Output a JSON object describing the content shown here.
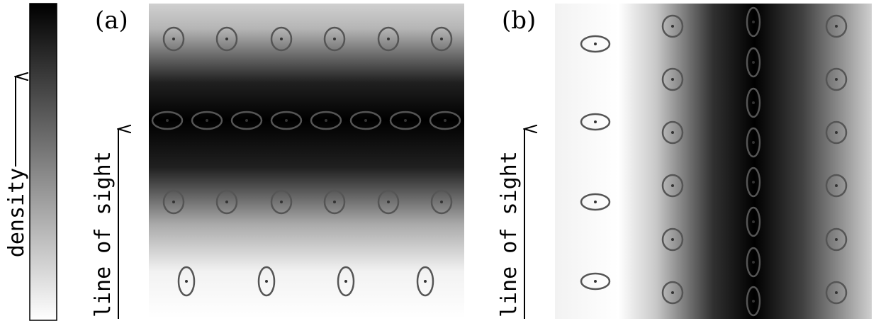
{
  "colorbar": {
    "label": "density"
  },
  "panels": [
    {
      "tag": "(a)",
      "axis_label": "line of sight"
    },
    {
      "tag": "(b)",
      "axis_label": "line of sight"
    }
  ]
}
